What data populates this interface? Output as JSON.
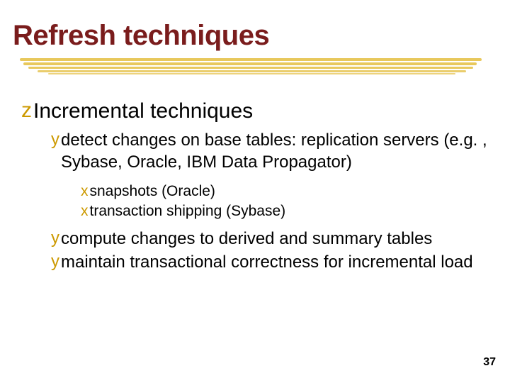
{
  "slide": {
    "title": "Refresh techniques",
    "title_color": "#7a1c1c",
    "title_fontsize": 40,
    "underline_color": "#e8c85c",
    "background_color": "#ffffff",
    "page_number": "37",
    "page_number_fontsize": 16,
    "bullets": {
      "level1_marker": "z",
      "level2_marker": "y",
      "level3_marker": "x",
      "marker_color": "#cc9900",
      "level1_fontsize": 30,
      "level2_fontsize": 24,
      "level3_fontsize": 21,
      "text_color": "#000000",
      "items": {
        "main": "Incremental techniques",
        "sub1": "detect changes on base tables: replication servers (e.g. , Sybase, Oracle, IBM Data Propagator)",
        "sub1_a": "snapshots (Oracle)",
        "sub1_b": "transaction shipping (Sybase)",
        "sub2": "compute changes to derived and summary tables",
        "sub3": "maintain transactional correctness for incremental load"
      }
    }
  }
}
